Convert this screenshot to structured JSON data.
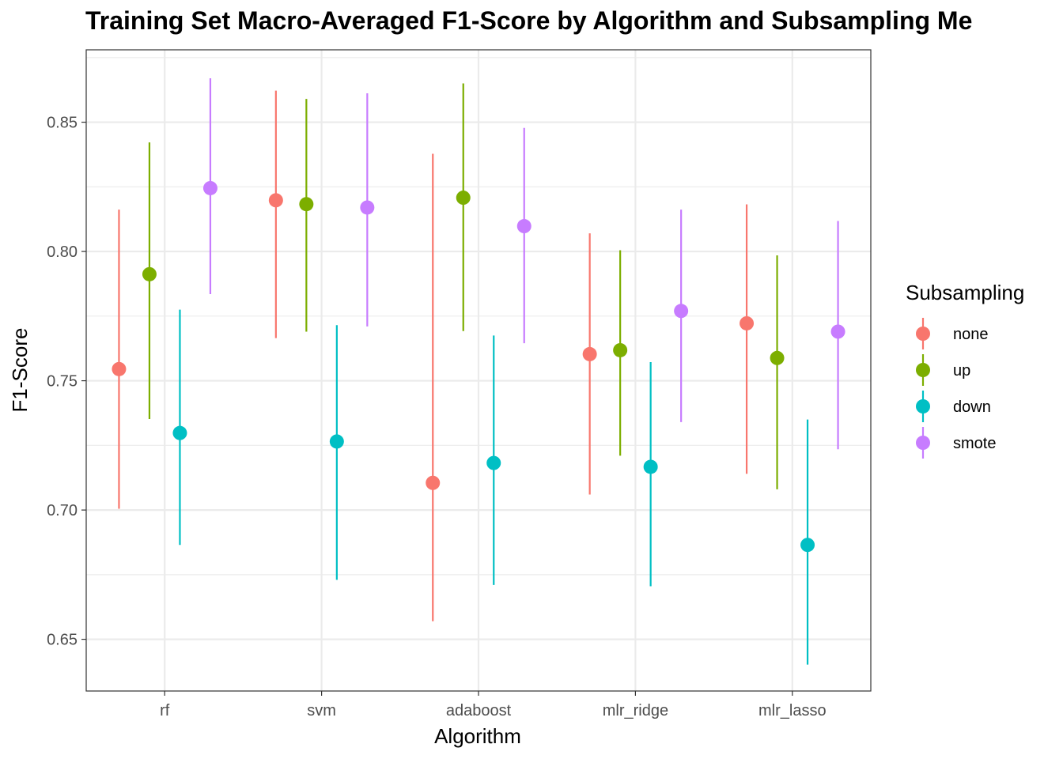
{
  "chart_data": {
    "type": "scatter",
    "title": "Training Set Macro-Averaged F1-Score by Algorithm and Subsampling Me",
    "xlabel": "Algorithm",
    "ylabel": "F1-Score",
    "ylim": [
      0.63,
      0.878
    ],
    "y_ticks": [
      "0.65",
      "0.70",
      "0.75",
      "0.80",
      "0.85"
    ],
    "categories": [
      "rf",
      "svm",
      "adaboost",
      "mlr_ridge",
      "mlr_lasso"
    ],
    "grid": true,
    "legend": {
      "title": "Subsampling",
      "position": "right"
    },
    "series": [
      {
        "name": "none",
        "color": "#F8766D",
        "values": [
          0.7545,
          0.8198,
          0.7105,
          0.7603,
          0.7722
        ],
        "lower": [
          0.7005,
          0.7665,
          0.657,
          0.706,
          0.714
        ],
        "upper": [
          0.8162,
          0.8622,
          0.8378,
          0.807,
          0.8182
        ]
      },
      {
        "name": "up",
        "color": "#7CAE00",
        "values": [
          0.7912,
          0.8183,
          0.8208,
          0.7618,
          0.7588
        ],
        "lower": [
          0.7352,
          0.769,
          0.7692,
          0.721,
          0.708
        ],
        "upper": [
          0.8422,
          0.859,
          0.865,
          0.8005,
          0.7985
        ]
      },
      {
        "name": "down",
        "color": "#00BFC4",
        "values": [
          0.7298,
          0.7265,
          0.7182,
          0.7167,
          0.6865
        ],
        "lower": [
          0.6865,
          0.673,
          0.671,
          0.6705,
          0.6402
        ],
        "upper": [
          0.7775,
          0.7715,
          0.7675,
          0.7572,
          0.735
        ]
      },
      {
        "name": "smote",
        "color": "#C77CFF",
        "values": [
          0.8245,
          0.817,
          0.8098,
          0.777,
          0.769
        ],
        "lower": [
          0.7835,
          0.771,
          0.7645,
          0.734,
          0.7235
        ],
        "upper": [
          0.867,
          0.8612,
          0.8478,
          0.8162,
          0.8118
        ]
      }
    ]
  }
}
